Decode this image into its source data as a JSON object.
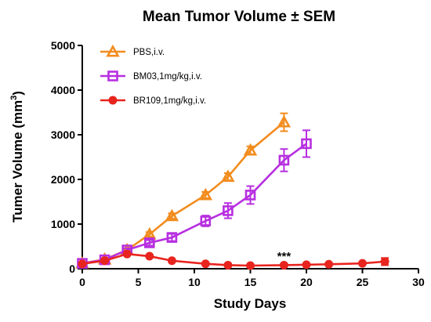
{
  "chart_data": {
    "type": "line",
    "title": "Mean Tumor Volume ± SEM",
    "xlabel": "Study Days",
    "ylabel_main": "Tumer Volume (mm",
    "ylabel_sup": "3",
    "ylabel_end": ")",
    "xlim": [
      0,
      30
    ],
    "ylim": [
      0,
      5000
    ],
    "xticks": [
      "0",
      "5",
      "10",
      "15",
      "20",
      "25",
      "30"
    ],
    "yticks": [
      "0",
      "1000",
      "2000",
      "3000",
      "4000",
      "5000"
    ],
    "annotation": {
      "text": "***",
      "x": 18,
      "y": 300
    },
    "legend_position": "top-left",
    "grid": false,
    "series": [
      {
        "name": "PBS,i.v.",
        "color": "#F28C1E",
        "marker": "triangle",
        "x": [
          0,
          2,
          4,
          6,
          8,
          11,
          13,
          15,
          18
        ],
        "y": [
          120,
          210,
          420,
          770,
          1180,
          1650,
          2060,
          2650,
          3280
        ],
        "err": [
          20,
          30,
          40,
          50,
          60,
          70,
          80,
          90,
          200
        ]
      },
      {
        "name": "BM03,1mg/kg,i.v.",
        "color": "#B72FE0",
        "marker": "square",
        "x": [
          0,
          2,
          4,
          6,
          8,
          11,
          13,
          15,
          18,
          20
        ],
        "y": [
          120,
          200,
          420,
          580,
          700,
          1070,
          1300,
          1650,
          2430,
          2800
        ],
        "err": [
          20,
          30,
          40,
          60,
          80,
          120,
          170,
          200,
          250,
          300
        ]
      },
      {
        "name": "BR109,1mg/kg,i.v.",
        "color": "#E8241E",
        "marker": "circle",
        "x": [
          0,
          2,
          4,
          6,
          8,
          11,
          13,
          15,
          18,
          20,
          22,
          25,
          27
        ],
        "y": [
          110,
          180,
          330,
          280,
          180,
          110,
          80,
          70,
          80,
          90,
          100,
          120,
          160
        ],
        "err": [
          10,
          20,
          30,
          30,
          20,
          20,
          10,
          10,
          10,
          15,
          20,
          30,
          80
        ]
      }
    ]
  }
}
